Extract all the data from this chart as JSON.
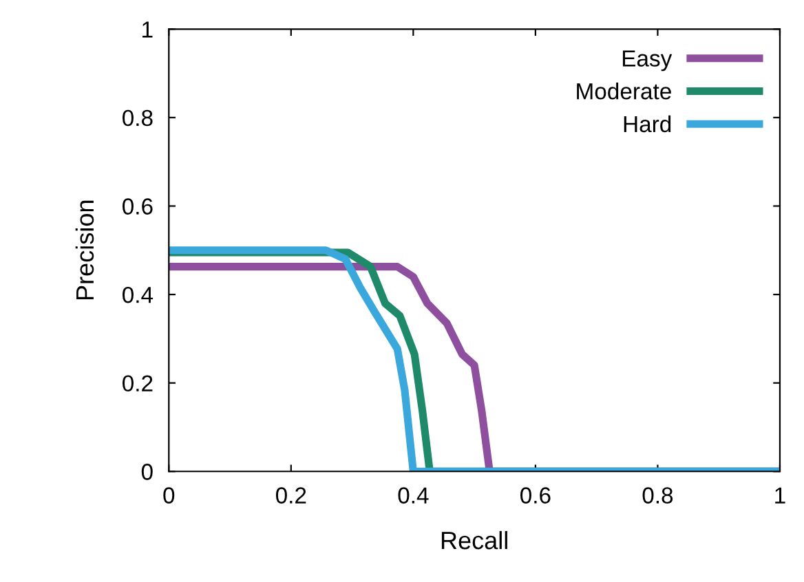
{
  "chart_data": {
    "type": "line",
    "xlabel": "Recall",
    "ylabel": "Precision",
    "xlim": [
      0,
      1
    ],
    "ylim": [
      0,
      1
    ],
    "xticks": [
      0,
      0.2,
      0.4,
      0.6,
      0.8,
      1
    ],
    "yticks": [
      0,
      0.2,
      0.4,
      0.6,
      0.8,
      1
    ],
    "grid": false,
    "legend": "top right",
    "marker": "none",
    "line_style": "solid",
    "series": [
      {
        "name": "Easy",
        "color": "#8e4f9e",
        "x": [
          0,
          0.374,
          0.4,
          0.423,
          0.455,
          0.48,
          0.5,
          0.512,
          0.524,
          0.525,
          1
        ],
        "values": [
          0.463,
          0.463,
          0.44,
          0.38,
          0.335,
          0.265,
          0.24,
          0.137,
          0.01,
          0,
          0
        ]
      },
      {
        "name": "Moderate",
        "color": "#1f8a6a",
        "x": [
          0,
          0.293,
          0.33,
          0.354,
          0.378,
          0.402,
          0.415,
          0.427,
          1
        ],
        "values": [
          0.495,
          0.495,
          0.463,
          0.38,
          0.352,
          0.265,
          0.137,
          0,
          0
        ]
      },
      {
        "name": "Hard",
        "color": "#3aa8dc",
        "x": [
          0,
          0.257,
          0.289,
          0.313,
          0.338,
          0.374,
          0.386,
          0.4,
          1
        ],
        "values": [
          0.5,
          0.5,
          0.48,
          0.416,
          0.358,
          0.277,
          0.184,
          0,
          0
        ]
      }
    ]
  }
}
